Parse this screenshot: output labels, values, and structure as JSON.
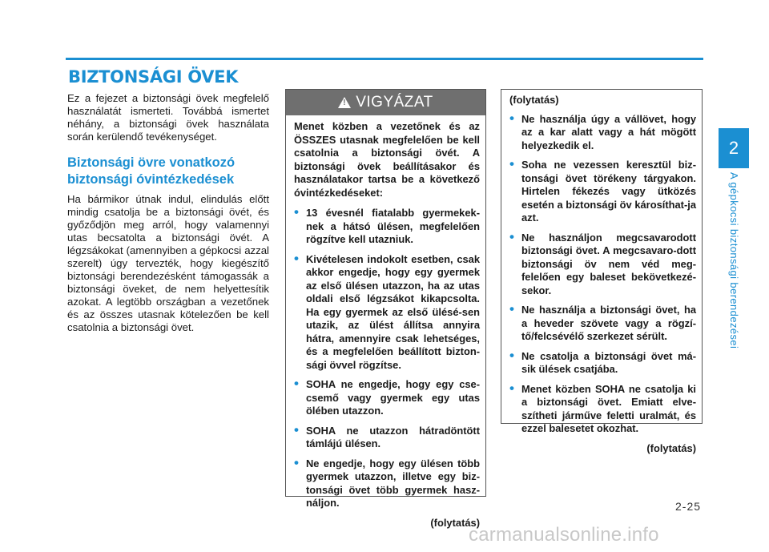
{
  "section_title": "BIZTONSÁGI ÖVEK",
  "left": {
    "intro": "Ez a fejezet a biztonsági övek megfelelő használatát ismerteti. Továbbá ismertet néhány, a biztonsági övek használata során kerülendő tevékenységet.",
    "subheading": "Biztonsági övre vonatkozó biztonsági óvintézkedések",
    "body": "Ha bármikor útnak indul, elindulás előtt mindig csatolja be a biztonsági övét, és győződjön meg arról, hogy valamennyi utas becsatolta a biztonsági övét. A légzsákokat (amennyiben a gépkocsi azzal szerelt) úgy tervezték, hogy kiegészítő biztonsági berendezésként támogassák a biztonsági öveket, de nem helyettesítik azokat. A legtöbb országban a vezetőnek és az összes utasnak kötelezően be kell csatolnia a biztonsági övet."
  },
  "warning": {
    "header": "VIGYÁZAT",
    "intro": "Menet közben a vezetőnek és az ÖSSZES utasnak megfelelően be kell csatolnia a biztonsági övét. A biztonsági övek beállításakor és használatakor tartsa be a következő óvintézkedéseket:",
    "items": [
      "13 évesnél fiatalabb gyermekek-nek a hátsó ülésen, megfelelően rögzítve kell utazniuk.",
      "Kivételesen indokolt esetben, csak akkor engedje, hogy egy gyermek az első ülésen utazzon, ha az utas oldali első légzsákot kikapcsolta. Ha egy gyermek az első ülésé-sen utazik, az ülést állítsa annyira hátra, amennyire csak lehetséges, és a megfelelően beállított bizton-sági övvel rögzítse.",
      "SOHA ne engedje, hogy egy cse-csemő vagy gyermek egy utas ölében utazzon.",
      "SOHA ne utazzon hátradöntött támlájú ülésen.",
      "Ne engedje, hogy egy ülésen több gyermek utazzon, illetve egy biz-tonsági övet több gyermek hasz-náljon."
    ],
    "continued": "(folytatás)"
  },
  "continuation": {
    "top": "(folytatás)",
    "items": [
      "Ne használja úgy a vállövet, hogy az a kar alatt vagy a hát mögött helyezkedik el.",
      "Soha ne vezessen keresztül biz-tonsági övet törékeny tárgyakon. Hirtelen fékezés vagy ütközés esetén a biztonsági öv károsíthat-ja azt.",
      "Ne használjon megcsavarodott biztonsági övet. A megcsavaro-dott biztonsági öv nem véd meg-felelően egy baleset bekövetkezé-sekor.",
      "Ne használja a biztonsági övet, ha a heveder szövete vagy a rögzí-tő/felcsévélő szerkezet sérült.",
      "Ne csatolja a biztonsági övet má-sik ülések csatjába.",
      "Menet közben SOHA ne csatolja ki a biztonsági övet. Emiatt elve-szítheti járműve feletti uralmát, és ezzel balesetet okozhat."
    ],
    "continued": "(folytatás)"
  },
  "side_tab": {
    "number": "2",
    "chapter": "A gépkocsi biztonsági berendezései"
  },
  "page_number": "2-25",
  "watermark": "carmanualsonline.info",
  "colors": {
    "accent": "#1b8fd2",
    "warning_header": "#6f6f6f"
  }
}
